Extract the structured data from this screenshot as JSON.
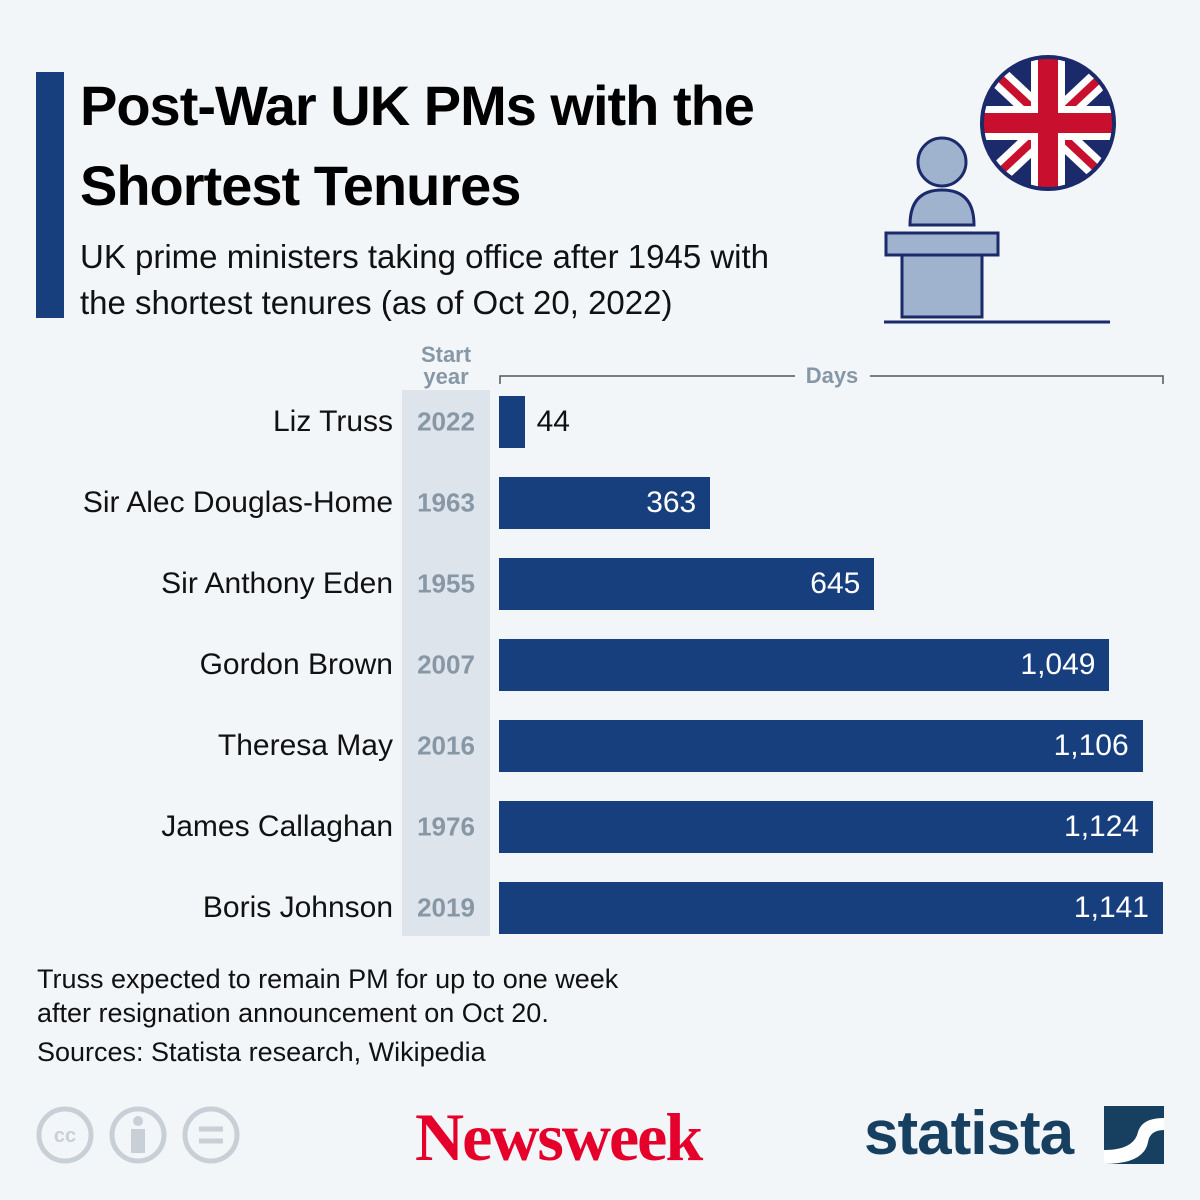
{
  "chart_data": {
    "type": "bar",
    "orientation": "horizontal",
    "title": "Post-War UK PMs with the Shortest Tenures",
    "subtitle": "UK prime ministers taking office after 1945 with the shortest tenures (as of Oct 20, 2022)",
    "start_year_label": "Start year",
    "x_label": "Days",
    "categories": [
      "Liz Truss",
      "Sir Alec Douglas-Home",
      "Sir Anthony Eden",
      "Gordon Brown",
      "Theresa May",
      "James Callaghan",
      "Boris Johnson"
    ],
    "start_years": [
      2022,
      1963,
      1955,
      2007,
      2016,
      1976,
      2019
    ],
    "values": [
      44,
      363,
      645,
      1049,
      1106,
      1124,
      1141
    ],
    "value_labels": [
      "44",
      "363",
      "645",
      "1,049",
      "1,106",
      "1,124",
      "1,141"
    ],
    "color": "#173f7d",
    "xlim": [
      0,
      1141
    ],
    "note_lines": [
      "Truss expected to remain PM for up to one week",
      "after resignation announcement on Oct 20."
    ],
    "source": "Sources: Statista research, Wikipedia",
    "logos": [
      "Newsweek",
      "statista"
    ]
  }
}
